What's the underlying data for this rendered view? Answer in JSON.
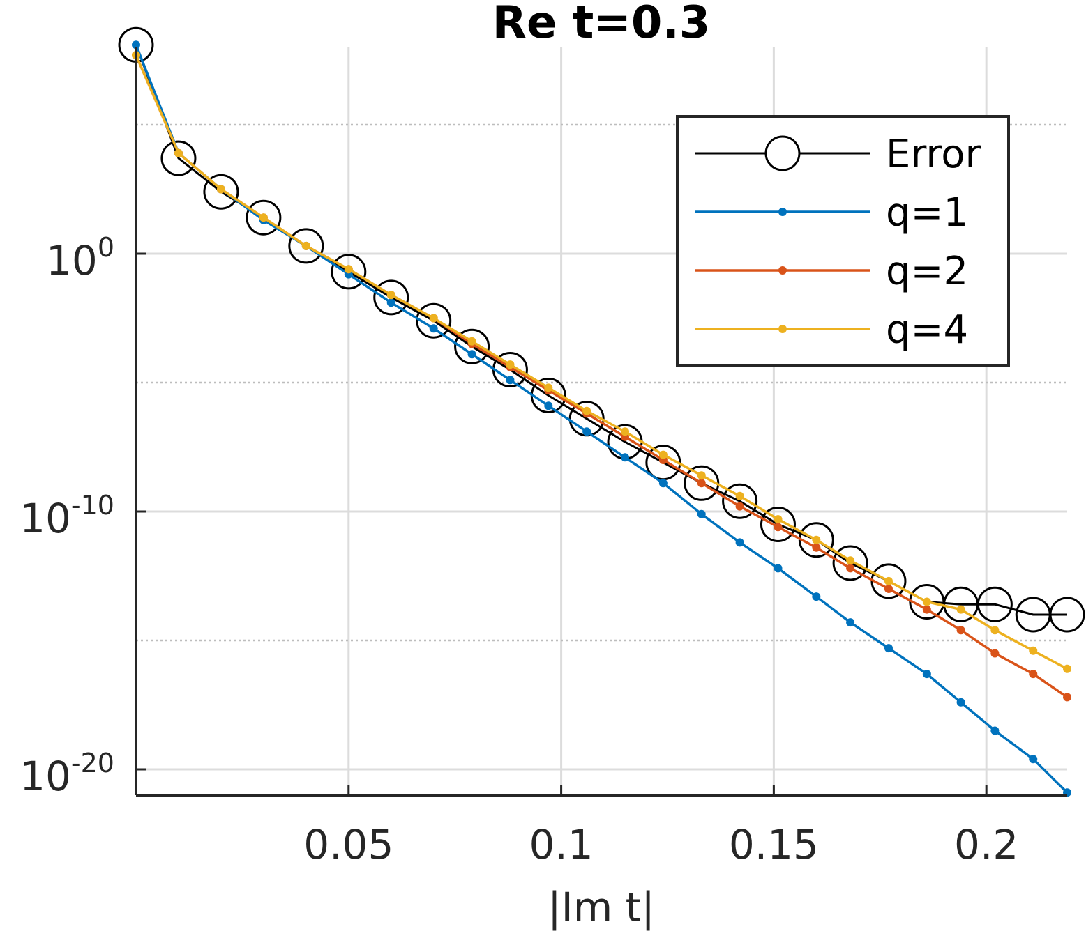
{
  "chart_data": {
    "type": "line",
    "title": "Re t=0.3",
    "xlabel": "|Im t|",
    "ylabel": "",
    "yscale": "log",
    "xlim": [
      0,
      0.219
    ],
    "ylim_log10": [
      -21,
      8
    ],
    "grid": true,
    "legend_position": "top-right",
    "xticks": [
      {
        "value": 0.05,
        "label": "0.05"
      },
      {
        "value": 0.1,
        "label": "0.1"
      },
      {
        "value": 0.15,
        "label": "0.15"
      },
      {
        "value": 0.2,
        "label": "0.2"
      }
    ],
    "yticks": [
      {
        "log10": 0,
        "base": "10",
        "exp": "0"
      },
      {
        "log10": -10,
        "base": "10",
        "exp": "-10"
      },
      {
        "log10": -20,
        "base": "10",
        "exp": "-20"
      }
    ],
    "minor_yticks_log10": [
      5,
      -5,
      -15
    ],
    "x": [
      0.0,
      0.01,
      0.02,
      0.03,
      0.04,
      0.05,
      0.06,
      0.07,
      0.079,
      0.088,
      0.097,
      0.106,
      0.115,
      0.124,
      0.133,
      0.142,
      0.151,
      0.16,
      0.168,
      0.177,
      0.186,
      0.194,
      0.202,
      0.211,
      0.219
    ],
    "series": [
      {
        "name": "Error",
        "color": "#000000",
        "marker": "circle",
        "log10_values": [
          8.1,
          3.7,
          2.4,
          1.4,
          0.3,
          -0.7,
          -1.7,
          -2.6,
          -3.6,
          -4.5,
          -5.5,
          -6.4,
          -7.3,
          -8.1,
          -8.9,
          -9.6,
          -10.5,
          -11.1,
          -12.0,
          -12.7,
          -13.5,
          -13.6,
          -13.6,
          -14.0,
          -14.0
        ]
      },
      {
        "name": "q=1",
        "color": "#0072BD",
        "marker": "dot",
        "log10_values": [
          8.1,
          3.9,
          2.5,
          1.3,
          0.3,
          -0.8,
          -1.9,
          -2.9,
          -3.9,
          -4.9,
          -5.9,
          -6.9,
          -7.9,
          -8.9,
          -10.1,
          -11.2,
          -12.2,
          -13.3,
          -14.3,
          -15.3,
          -16.3,
          -17.4,
          -18.5,
          -19.6,
          -20.9
        ]
      },
      {
        "name": "q=2",
        "color": "#D95319",
        "marker": "dot",
        "log10_values": [
          7.7,
          3.9,
          2.5,
          1.4,
          0.3,
          -0.6,
          -1.6,
          -2.5,
          -3.5,
          -4.4,
          -5.3,
          -6.2,
          -7.1,
          -8.0,
          -8.9,
          -9.8,
          -10.6,
          -11.4,
          -12.2,
          -13.0,
          -13.8,
          -14.6,
          -15.5,
          -16.3,
          -17.2
        ]
      },
      {
        "name": "q=4",
        "color": "#EDB120",
        "marker": "dot",
        "log10_values": [
          7.7,
          3.9,
          2.5,
          1.4,
          0.3,
          -0.6,
          -1.6,
          -2.5,
          -3.4,
          -4.3,
          -5.2,
          -6.1,
          -6.9,
          -7.8,
          -8.6,
          -9.4,
          -10.3,
          -11.1,
          -11.9,
          -12.7,
          -13.5,
          -13.8,
          -14.6,
          -15.4,
          -16.1
        ]
      }
    ]
  }
}
